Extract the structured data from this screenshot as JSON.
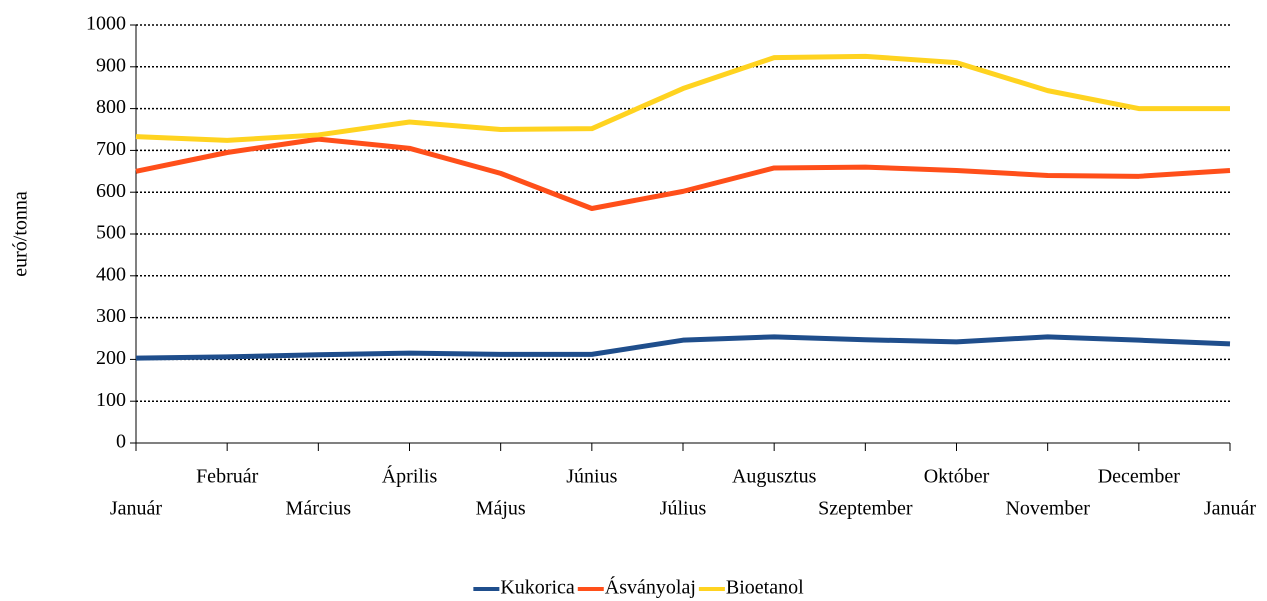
{
  "chart_data": {
    "type": "line",
    "y_label": "euró/tonna",
    "categories": [
      "Január",
      "Február",
      "Március",
      "Április",
      "Május",
      "Június",
      "Július",
      "Augusztus",
      "Szeptember",
      "Október",
      "November",
      "December",
      "Január"
    ],
    "series": [
      {
        "name": "Kukorica",
        "color": "#1f4e8c",
        "values": [
          203,
          206,
          211,
          215,
          212,
          212,
          246,
          254,
          247,
          242,
          254,
          246,
          237
        ]
      },
      {
        "name": "Ásványolaj",
        "color": "#ff4f1a",
        "values": [
          650,
          695,
          727,
          705,
          645,
          561,
          602,
          658,
          660,
          652,
          640,
          638,
          652
        ]
      },
      {
        "name": "Bioetanol",
        "color": "#ffd320",
        "values": [
          733,
          724,
          737,
          768,
          750,
          752,
          848,
          922,
          925,
          910,
          843,
          800,
          800
        ]
      }
    ],
    "ylim": [
      0,
      1000
    ],
    "yticks": [
      0,
      100,
      200,
      300,
      400,
      500,
      600,
      700,
      800,
      900,
      1000
    ],
    "grid": true,
    "legend": "bottom"
  }
}
